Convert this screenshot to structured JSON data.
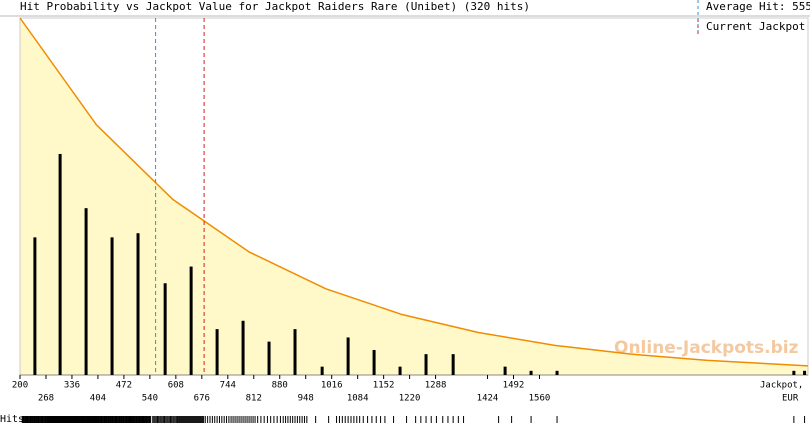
{
  "chart_data": {
    "type": "bar",
    "title": "Hit Probability vs Jackpot Value for Jackpot Raiders Rare (Unibet) (320 hits)",
    "x": [
      239,
      305,
      373,
      441,
      509,
      580,
      648,
      716,
      784,
      852,
      920,
      991,
      1059,
      1127,
      1195,
      1263,
      1334,
      1470,
      1538,
      1606,
      2226,
      2254
    ],
    "values": [
      33,
      53,
      40,
      33,
      34,
      22,
      26,
      11,
      13,
      8,
      11,
      2,
      9,
      6,
      2,
      5,
      5,
      2,
      1,
      1,
      1,
      1
    ],
    "color": "#000000",
    "xlim": [
      200,
      2263
    ],
    "ylim": [
      0,
      85.6
    ],
    "xticks": [
      200,
      268,
      336,
      404,
      472,
      540,
      608,
      676,
      744,
      812,
      880,
      948,
      1016,
      1084,
      1152,
      1220,
      1288,
      1424,
      1492,
      1560
    ],
    "x_label": [
      "Jackpot,",
      "EUR"
    ],
    "rug_label": "Hits",
    "curve": {
      "color": "#f08c00",
      "fill": "#fff8c8",
      "x": [
        200,
        400,
        600,
        800,
        1000,
        1200,
        1400,
        1600,
        1800,
        2000,
        2263
      ],
      "values": [
        85.6,
        60.0,
        42.1,
        29.5,
        20.7,
        14.5,
        10.2,
        7.1,
        5.0,
        3.5,
        2.2
      ]
    },
    "average_hit": {
      "label": "Average Hit: 555",
      "value": 555,
      "color": "#3a8fd0"
    },
    "current_jackpot": {
      "label": "Current Jackpot",
      "value": 682,
      "color": "#d02020"
    },
    "watermark": "Online-Jackpots.biz"
  }
}
